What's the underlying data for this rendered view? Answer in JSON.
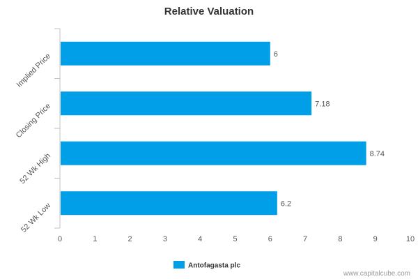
{
  "chart_data": {
    "type": "bar",
    "orientation": "horizontal",
    "title": "Relative Valuation",
    "categories": [
      "Implied Price",
      "Closing Price",
      "52 Wk High",
      "52 Wk Low"
    ],
    "series": [
      {
        "name": "Antofagasta plc",
        "values": [
          6,
          7.18,
          8.74,
          6.2
        ]
      }
    ],
    "data_labels": [
      "6",
      "7.18",
      "8.74",
      "6.2"
    ],
    "x_ticks": [
      "0",
      "1",
      "2",
      "3",
      "4",
      "5",
      "6",
      "7",
      "8",
      "9",
      "10"
    ],
    "xlim": [
      0,
      10
    ],
    "xlabel": "",
    "ylabel": "",
    "grid": false,
    "legend": "bottom-center"
  },
  "colors": {
    "bar": "#009fe8",
    "axis": "#c0c0c0"
  },
  "credit": "www.capitalcube.com"
}
